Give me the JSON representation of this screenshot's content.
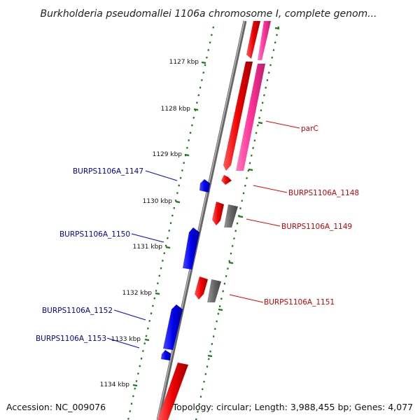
{
  "header": {
    "title": "Burkholderia pseudomallei 1106a chromosome I, complete genom..."
  },
  "footer": {
    "accession": "Accession: NC_009076",
    "summary": "Topology: circular; Length: 3,988,455 bp; Genes: 4,077"
  },
  "axis": {
    "ticks": [
      {
        "label": "1127 kbp"
      },
      {
        "label": "1128 kbp"
      },
      {
        "label": "1129 kbp"
      },
      {
        "label": "1130 kbp"
      },
      {
        "label": "1131 kbp"
      },
      {
        "label": "1132 kbp"
      },
      {
        "label": "1133 kbp"
      },
      {
        "label": "1134 kbp"
      }
    ]
  },
  "genes": {
    "left": [
      {
        "label": "BURPS1106A_1147"
      },
      {
        "label": "BURPS1106A_1150"
      },
      {
        "label": "BURPS1106A_1152"
      },
      {
        "label": "BURPS1106A_1153"
      }
    ],
    "right": [
      {
        "label": "parC"
      },
      {
        "label": "BURPS1106A_1148"
      },
      {
        "label": "BURPS1106A_1149"
      },
      {
        "label": "BURPS1106A_1151"
      }
    ]
  },
  "colors": {
    "reverse_gene": "#0000ee",
    "forward_gene": "#ee0000",
    "cds": "#ff3399",
    "pseudo": "#666666",
    "dots": "#1a7a1a",
    "backbone": "#888888",
    "left_label": "#0000aa",
    "right_label": "#cc0000"
  }
}
